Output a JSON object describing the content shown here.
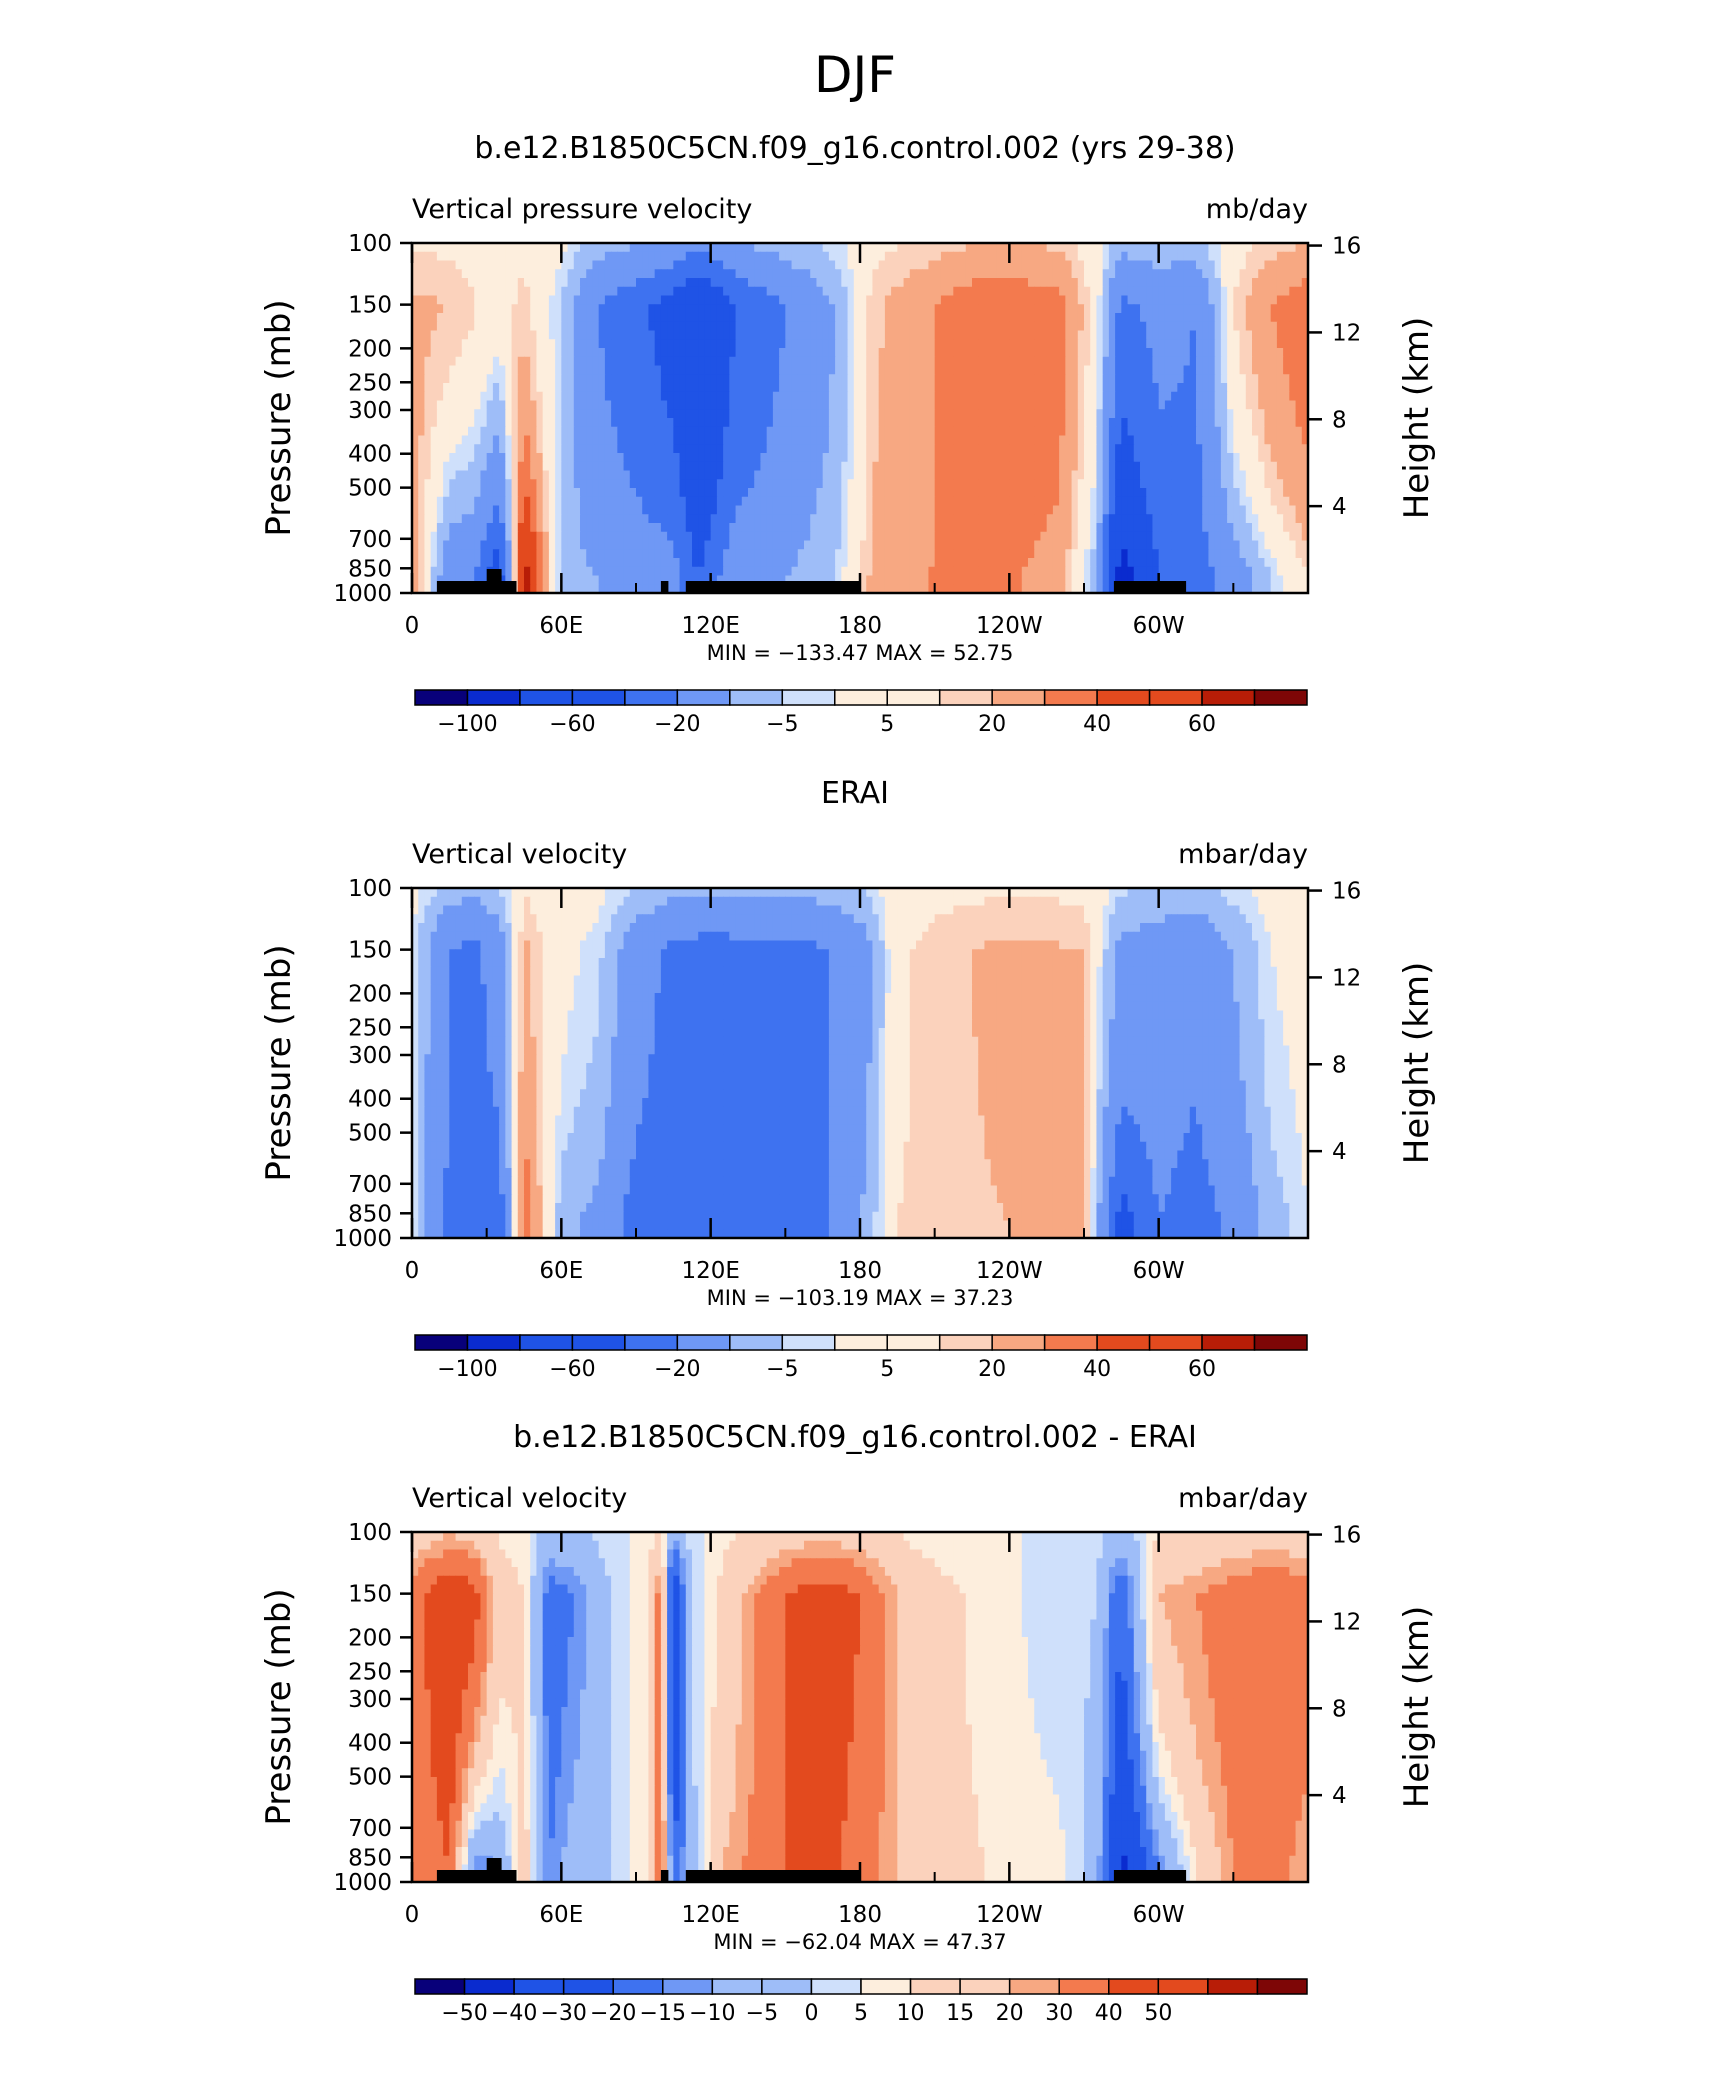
{
  "figure_title": "DJF",
  "colors": {
    "ramp_12": [
      "#08007a",
      "#0a2bcf",
      "#1f53e6",
      "#3e72f0",
      "#6f98f5",
      "#9ebdf8",
      "#cfe0fb",
      "#fdeedd",
      "#fbd2bc",
      "#f7a882",
      "#f37a4e",
      "#e34a1e",
      "#b81d07",
      "#7e0606"
    ],
    "ramp_18": [
      "#08007a",
      "#0a2bcf",
      "#1f53e6",
      "#3e72f0",
      "#6f98f5",
      "#9ebdf8",
      "#cfe0fb",
      "#fdeedd",
      "#fbd2bc",
      "#f7a882",
      "#f37a4e",
      "#e34a1e",
      "#b81d07",
      "#7e0606"
    ]
  },
  "chart_data": [
    {
      "type": "heatmap",
      "title": "b.e12.B1850C5CN.f09_g16.control.002 (yrs 29-38)",
      "left_label": "Vertical pressure velocity",
      "right_label": "mb/day",
      "ylabel": "Pressure (mb)",
      "ylabel_right": "Height (km)",
      "x_ticks": [
        "0",
        "60E",
        "120E",
        "180",
        "120W",
        "60W"
      ],
      "y_ticks": [
        "100",
        "150",
        "200",
        "250",
        "300",
        "400",
        "500",
        "700",
        "850",
        "1000"
      ],
      "y_ticks_right": [
        "16",
        "12",
        "8",
        "4"
      ],
      "xlim": [
        0,
        360
      ],
      "ylim": [
        1000,
        100
      ],
      "stats": "MIN =  −133.47   MAX =   52.75",
      "colorbar_labels": [
        "−100",
        "−60",
        "−20",
        "−5",
        "5",
        "20",
        "40",
        "60"
      ],
      "colorbar_levels": [
        -120,
        -100,
        -80,
        -60,
        -40,
        -20,
        -10,
        -5,
        0,
        5,
        10,
        20,
        30,
        40,
        50,
        60
      ],
      "field": {
        "lons": [
          0,
          15,
          25,
          35,
          45,
          60,
          75,
          90,
          105,
          115,
          130,
          150,
          170,
          185,
          200,
          230,
          260,
          275,
          285,
          300,
          315,
          330,
          345,
          360
        ],
        "lev_upper": [
          12,
          10,
          6,
          0,
          8,
          -10,
          -40,
          -55,
          -70,
          -95,
          -60,
          -40,
          -20,
          8,
          15,
          30,
          25,
          0,
          -45,
          -35,
          -40,
          5,
          20,
          28
        ],
        "lev_lower": [
          20,
          -35,
          -40,
          -80,
          60,
          -15,
          -20,
          -25,
          -30,
          -60,
          -25,
          -20,
          -10,
          12,
          18,
          25,
          15,
          -15,
          -120,
          -60,
          -50,
          -30,
          -10,
          5
        ]
      },
      "land_segments": [
        [
          10,
          42
        ],
        [
          100,
          103
        ],
        [
          110,
          180
        ],
        [
          282,
          311
        ]
      ]
    },
    {
      "type": "heatmap",
      "title": "ERAI",
      "left_label": "Vertical velocity",
      "right_label": "mbar/day",
      "ylabel": "Pressure (mb)",
      "ylabel_right": "Height (km)",
      "x_ticks": [
        "0",
        "60E",
        "120E",
        "180",
        "120W",
        "60W"
      ],
      "y_ticks": [
        "100",
        "150",
        "200",
        "250",
        "300",
        "400",
        "500",
        "700",
        "850",
        "1000"
      ],
      "y_ticks_right": [
        "16",
        "12",
        "8",
        "4"
      ],
      "xlim": [
        0,
        360
      ],
      "ylim": [
        1000,
        100
      ],
      "stats": "MIN =  −103.19   MAX =   37.23",
      "colorbar_labels": [
        "−100",
        "−60",
        "−20",
        "−5",
        "5",
        "20",
        "40",
        "60"
      ],
      "colorbar_levels": [
        -120,
        -100,
        -80,
        -60,
        -40,
        -20,
        -10,
        -5,
        0,
        5,
        10,
        20,
        30,
        40,
        50,
        60
      ],
      "field": {
        "lons": [
          0,
          15,
          25,
          35,
          45,
          60,
          75,
          90,
          105,
          120,
          140,
          160,
          180,
          195,
          210,
          240,
          270,
          285,
          300,
          315,
          330,
          345,
          360
        ],
        "lev_upper": [
          -5,
          -40,
          -45,
          -30,
          12,
          -2,
          -8,
          -30,
          -45,
          -50,
          -45,
          -45,
          -30,
          3,
          8,
          12,
          10,
          -25,
          -30,
          -35,
          -20,
          -5,
          -2
        ],
        "lev_lower": [
          -5,
          -45,
          -50,
          -55,
          30,
          -15,
          -25,
          -50,
          -60,
          -55,
          -55,
          -50,
          -20,
          5,
          8,
          10,
          12,
          -70,
          -40,
          -50,
          -35,
          -15,
          -5
        ]
      },
      "land_segments": []
    },
    {
      "type": "heatmap",
      "title": "b.e12.B1850C5CN.f09_g16.control.002 - ERAI",
      "left_label": "Vertical velocity",
      "right_label": "mbar/day",
      "ylabel": "Pressure (mb)",
      "ylabel_right": "Height (km)",
      "x_ticks": [
        "0",
        "60E",
        "120E",
        "180",
        "120W",
        "60W"
      ],
      "y_ticks": [
        "100",
        "150",
        "200",
        "250",
        "300",
        "400",
        "500",
        "700",
        "850",
        "1000"
      ],
      "y_ticks_right": [
        "16",
        "12",
        "8",
        "4"
      ],
      "xlim": [
        0,
        360
      ],
      "ylim": [
        1000,
        100
      ],
      "stats": "MIN =  −62.04   MAX =   47.37",
      "colorbar_labels": [
        "−50",
        "−40",
        "−30",
        "−20",
        "−15",
        "−10",
        "−5",
        "0",
        "5",
        "10",
        "15",
        "20",
        "30",
        "40",
        "50"
      ],
      "colorbar_levels": [
        -60,
        -50,
        -40,
        -30,
        -20,
        -15,
        -10,
        -5,
        0,
        5,
        10,
        15,
        20,
        30,
        40,
        50,
        60
      ],
      "field": {
        "lons": [
          0,
          15,
          25,
          35,
          45,
          55,
          65,
          80,
          95,
          100,
          105,
          112,
          125,
          150,
          165,
          180,
          200,
          230,
          260,
          275,
          285,
          300,
          315,
          330,
          345,
          360
        ],
        "lev_upper": [
          25,
          40,
          35,
          10,
          5,
          -25,
          -20,
          -5,
          5,
          25,
          -45,
          -5,
          8,
          30,
          35,
          30,
          10,
          3,
          -3,
          -5,
          -30,
          15,
          20,
          25,
          30,
          25
        ],
        "lev_lower": [
          20,
          30,
          -20,
          -15,
          10,
          -20,
          -10,
          -5,
          5,
          35,
          -30,
          -10,
          15,
          30,
          35,
          25,
          12,
          5,
          2,
          -10,
          -55,
          -20,
          5,
          20,
          25,
          15
        ]
      },
      "land_segments": [
        [
          10,
          42
        ],
        [
          100,
          103
        ],
        [
          110,
          180
        ],
        [
          282,
          311
        ]
      ]
    }
  ]
}
